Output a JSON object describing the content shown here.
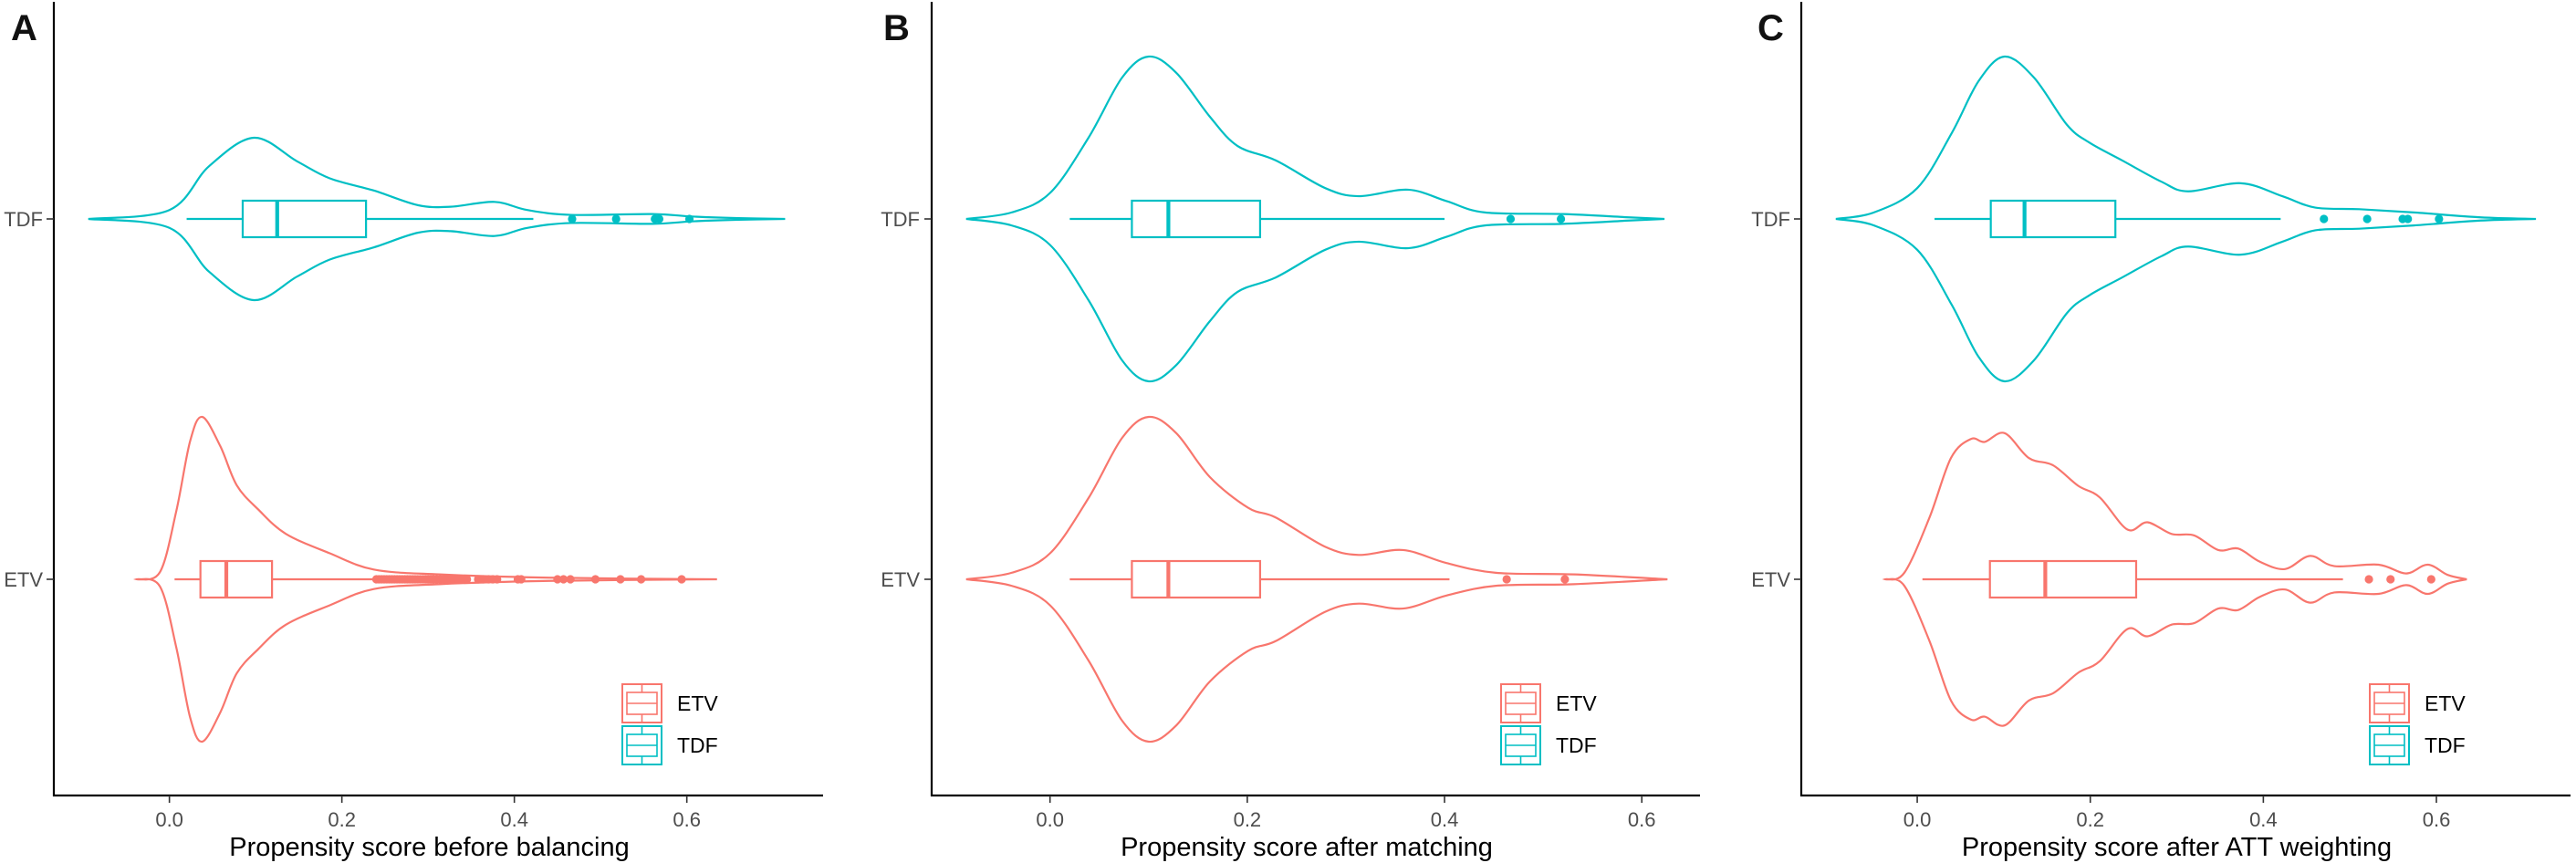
{
  "colors": {
    "ETV": "#F8766D",
    "TDF": "#00BFC4"
  },
  "legend": {
    "items": [
      "ETV",
      "TDF"
    ],
    "placement": "bottom-right"
  },
  "chart_data": [
    {
      "type": "violin+box",
      "panel_label": "A",
      "xlabel": "Propensity score before balancing",
      "ylabel": "",
      "xlim": [
        -0.134,
        0.758
      ],
      "xticks": [
        "0.0",
        "0.2",
        "0.4",
        "0.6"
      ],
      "xtick_values": [
        0,
        0.2,
        0.4,
        0.6
      ],
      "categories": [
        "TDF",
        "ETV"
      ],
      "grid": false,
      "groups": [
        {
          "name": "TDF",
          "peak": 0.5,
          "density": [
            [
              -0.094,
              0
            ],
            [
              0,
              0.11
            ],
            [
              0.046,
              0.65
            ],
            [
              0.098,
              1
            ],
            [
              0.148,
              0.71
            ],
            [
              0.186,
              0.5
            ],
            [
              0.237,
              0.35
            ],
            [
              0.288,
              0.17
            ],
            [
              0.326,
              0.15
            ],
            [
              0.377,
              0.21
            ],
            [
              0.415,
              0.11
            ],
            [
              0.466,
              0.05
            ],
            [
              0.56,
              0.06
            ],
            [
              0.606,
              0.03
            ],
            [
              0.66,
              0.01
            ],
            [
              0.714,
              0
            ]
          ],
          "box": {
            "whisker_low": 0.02,
            "q1": 0.085,
            "median": 0.125,
            "q3": 0.228,
            "whisker_high": 0.422
          },
          "outliers": [
            0.467,
            0.518,
            0.563,
            0.568,
            0.603
          ]
        },
        {
          "name": "ETV",
          "peak": 1.0,
          "density": [
            [
              -0.038,
              0
            ],
            [
              -0.011,
              0.044
            ],
            [
              0.008,
              0.42
            ],
            [
              0.024,
              0.85
            ],
            [
              0.038,
              1
            ],
            [
              0.059,
              0.82
            ],
            [
              0.078,
              0.58
            ],
            [
              0.103,
              0.43
            ],
            [
              0.135,
              0.28
            ],
            [
              0.186,
              0.16
            ],
            [
              0.237,
              0.06
            ],
            [
              0.313,
              0.03
            ],
            [
              0.44,
              0.01
            ],
            [
              0.635,
              0
            ]
          ],
          "box": {
            "whisker_low": 0.006,
            "q1": 0.036,
            "median": 0.066,
            "q3": 0.119,
            "whisker_high": 0.237
          },
          "outliers": [
            0.24,
            0.243,
            0.246,
            0.249,
            0.252,
            0.255,
            0.258,
            0.261,
            0.264,
            0.267,
            0.27,
            0.273,
            0.276,
            0.279,
            0.282,
            0.285,
            0.288,
            0.291,
            0.294,
            0.297,
            0.3,
            0.303,
            0.306,
            0.31,
            0.314,
            0.318,
            0.322,
            0.326,
            0.33,
            0.335,
            0.34,
            0.345,
            0.358,
            0.364,
            0.37,
            0.375,
            0.38,
            0.404,
            0.408,
            0.45,
            0.457,
            0.465,
            0.494,
            0.523,
            0.547,
            0.594
          ]
        }
      ]
    },
    {
      "type": "violin+box",
      "panel_label": "B",
      "xlabel": "Propensity score after matching",
      "ylabel": "",
      "xlim": [
        -0.12,
        0.659
      ],
      "xticks": [
        "0.0",
        "0.2",
        "0.4",
        "0.6"
      ],
      "xtick_values": [
        0,
        0.2,
        0.4,
        0.6
      ],
      "categories": [
        "TDF",
        "ETV"
      ],
      "grid": false,
      "groups": [
        {
          "name": "TDF",
          "peak": 1.0,
          "density": [
            [
              -0.085,
              0
            ],
            [
              -0.039,
              0.04
            ],
            [
              0,
              0.16
            ],
            [
              0.039,
              0.5
            ],
            [
              0.073,
              0.87
            ],
            [
              0.1,
              1
            ],
            [
              0.128,
              0.9
            ],
            [
              0.162,
              0.63
            ],
            [
              0.19,
              0.45
            ],
            [
              0.229,
              0.36
            ],
            [
              0.279,
              0.19
            ],
            [
              0.313,
              0.14
            ],
            [
              0.363,
              0.18
            ],
            [
              0.402,
              0.11
            ],
            [
              0.441,
              0.04
            ],
            [
              0.52,
              0.03
            ],
            [
              0.587,
              0.01
            ],
            [
              0.623,
              0
            ]
          ],
          "box": {
            "whisker_low": 0.02,
            "q1": 0.083,
            "median": 0.12,
            "q3": 0.213,
            "whisker_high": 0.4
          },
          "outliers": [
            0.467,
            0.518
          ]
        },
        {
          "name": "ETV",
          "peak": 1.0,
          "density": [
            [
              -0.085,
              0
            ],
            [
              -0.039,
              0.04
            ],
            [
              0,
              0.16
            ],
            [
              0.039,
              0.5
            ],
            [
              0.073,
              0.87
            ],
            [
              0.1,
              1
            ],
            [
              0.128,
              0.9
            ],
            [
              0.162,
              0.63
            ],
            [
              0.201,
              0.44
            ],
            [
              0.229,
              0.38
            ],
            [
              0.279,
              0.2
            ],
            [
              0.313,
              0.15
            ],
            [
              0.358,
              0.18
            ],
            [
              0.402,
              0.1
            ],
            [
              0.452,
              0.04
            ],
            [
              0.531,
              0.03
            ],
            [
              0.626,
              0
            ]
          ],
          "box": {
            "whisker_low": 0.02,
            "q1": 0.083,
            "median": 0.12,
            "q3": 0.213,
            "whisker_high": 0.405
          },
          "outliers": [
            0.463,
            0.522
          ]
        }
      ]
    },
    {
      "type": "violin+box",
      "panel_label": "C",
      "xlabel": "Propensity score after ATT weighting",
      "ylabel": "",
      "xlim": [
        -0.134,
        0.755
      ],
      "xticks": [
        "0.0",
        "0.2",
        "0.4",
        "0.6"
      ],
      "xtick_values": [
        0,
        0.2,
        0.4,
        0.6
      ],
      "categories": [
        "TDF",
        "ETV"
      ],
      "grid": false,
      "groups": [
        {
          "name": "TDF",
          "peak": 1.0,
          "density": [
            [
              -0.094,
              0
            ],
            [
              -0.05,
              0.04
            ],
            [
              0,
              0.19
            ],
            [
              0.04,
              0.53
            ],
            [
              0.071,
              0.85
            ],
            [
              0.101,
              1
            ],
            [
              0.135,
              0.87
            ],
            [
              0.173,
              0.58
            ],
            [
              0.199,
              0.47
            ],
            [
              0.237,
              0.36
            ],
            [
              0.282,
              0.23
            ],
            [
              0.313,
              0.17
            ],
            [
              0.374,
              0.22
            ],
            [
              0.422,
              0.14
            ],
            [
              0.46,
              0.07
            ],
            [
              0.511,
              0.06
            ],
            [
              0.574,
              0.04
            ],
            [
              0.651,
              0.01
            ],
            [
              0.715,
              0
            ]
          ],
          "box": {
            "whisker_low": 0.02,
            "q1": 0.085,
            "median": 0.124,
            "q3": 0.229,
            "whisker_high": 0.42
          },
          "outliers": [
            0.47,
            0.52,
            0.561,
            0.567,
            0.603
          ]
        },
        {
          "name": "ETV",
          "peak": 0.9,
          "density": [
            [
              -0.037,
              0
            ],
            [
              -0.015,
              0.044
            ],
            [
              0.014,
              0.42
            ],
            [
              0.039,
              0.83
            ],
            [
              0.062,
              0.96
            ],
            [
              0.078,
              0.94
            ],
            [
              0.101,
              1
            ],
            [
              0.129,
              0.83
            ],
            [
              0.157,
              0.78
            ],
            [
              0.186,
              0.64
            ],
            [
              0.211,
              0.56
            ],
            [
              0.243,
              0.34
            ],
            [
              0.266,
              0.39
            ],
            [
              0.294,
              0.31
            ],
            [
              0.32,
              0.3
            ],
            [
              0.348,
              0.2
            ],
            [
              0.371,
              0.21
            ],
            [
              0.396,
              0.12
            ],
            [
              0.425,
              0.07
            ],
            [
              0.454,
              0.16
            ],
            [
              0.482,
              0.09
            ],
            [
              0.533,
              0.1
            ],
            [
              0.565,
              0.04
            ],
            [
              0.59,
              0.1
            ],
            [
              0.613,
              0.03
            ],
            [
              0.635,
              0
            ]
          ],
          "box": {
            "whisker_low": 0.006,
            "q1": 0.084,
            "median": 0.148,
            "q3": 0.253,
            "whisker_high": 0.492
          },
          "outliers": [
            0.522,
            0.547,
            0.594
          ]
        }
      ]
    }
  ]
}
